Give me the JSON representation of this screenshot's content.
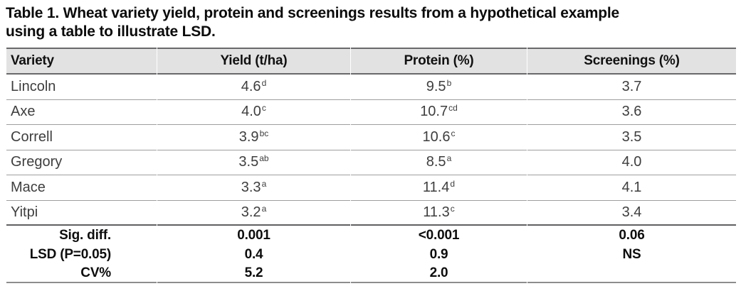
{
  "caption": {
    "line1": "Table 1. Wheat variety yield, protein and screenings results from a hypothetical example",
    "line2": "using a table to illustrate LSD."
  },
  "table": {
    "columns": [
      "Variety",
      "Yield (t/ha)",
      "Protein (%)",
      "Screenings (%)"
    ],
    "rows": [
      {
        "variety": "Lincoln",
        "yield": "4.6",
        "yield_sup": "d",
        "protein": "9.5",
        "protein_sup": "b",
        "screenings": "3.7"
      },
      {
        "variety": "Axe",
        "yield": "4.0",
        "yield_sup": "c",
        "protein": "10.7",
        "protein_sup": "cd",
        "screenings": "3.6"
      },
      {
        "variety": "Correll",
        "yield": "3.9",
        "yield_sup": "bc",
        "protein": "10.6",
        "protein_sup": "c",
        "screenings": "3.5"
      },
      {
        "variety": "Gregory",
        "yield": "3.5",
        "yield_sup": "ab",
        "protein": "8.5",
        "protein_sup": "a",
        "screenings": "4.0"
      },
      {
        "variety": "Mace",
        "yield": "3.3",
        "yield_sup": "a",
        "protein": "11.4",
        "protein_sup": "d",
        "screenings": "4.1"
      },
      {
        "variety": "Yitpi",
        "yield": "3.2",
        "yield_sup": "a",
        "protein": "11.3",
        "protein_sup": "c",
        "screenings": "3.4"
      }
    ],
    "summary": [
      {
        "label": "Sig. diff.",
        "yield": "0.001",
        "protein": "<0.001",
        "screenings": "0.06"
      },
      {
        "label": "LSD (P=0.05)",
        "yield": "0.4",
        "protein": "0.9",
        "screenings": "NS"
      },
      {
        "label": "CV%",
        "yield": "5.2",
        "protein": "2.0",
        "screenings": ""
      }
    ]
  },
  "colors": {
    "header_band": "#e2e2e2",
    "rule_dark": "#69696b",
    "rule_light": "#9e9e9e",
    "rule_bottom": "#8d8d8d",
    "body_text": "#3e3e3e",
    "heading_text": "#111111"
  }
}
